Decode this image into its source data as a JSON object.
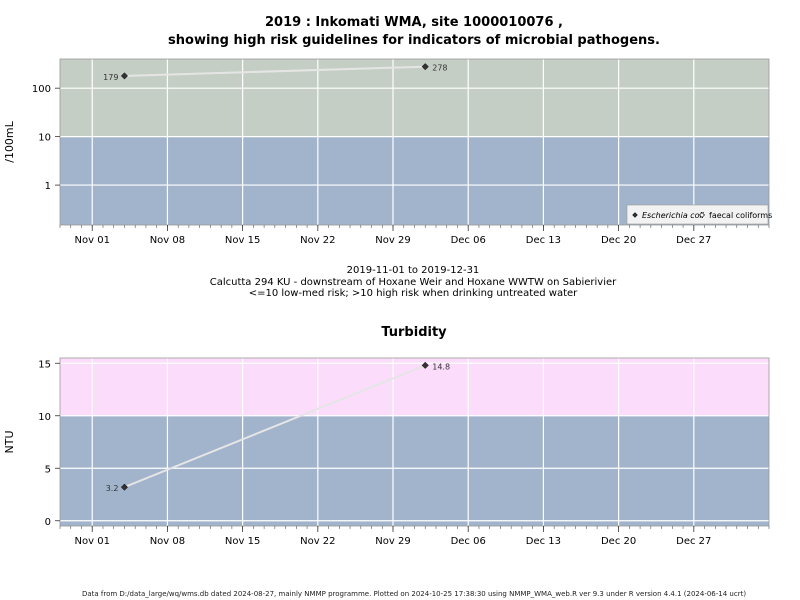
{
  "title_line1": "2019 : Inkomati WMA, site 1000010076 ,",
  "title_line2": "showing high risk guidelines for indicators of microbial pathogens.",
  "subtitle_lines": [
    "2019-11-01 to 2019-12-31",
    "Calcutta 294 KU - downstream of Hoxane Weir and Hoxane WWTW on Sabierivier",
    "<=10 low-med risk; >10 high risk when drinking untreated water"
  ],
  "footer": "Data from D:/data_large/wq/wms.db dated 2024-08-27, mainly NMMP programme. Plotted on 2024-10-25 17:38:30 using NMMP_WMA_web.R ver 9.3 under R version 4.4.1 (2024-06-14 ucrt)",
  "colors": {
    "panel_bg": "#a2b4cc",
    "high_risk_micro": "#c5cec5",
    "high_risk_turb": "#fbdcfb",
    "grid": "#ffffff",
    "line": "#e5e5e5",
    "point": "#333333"
  },
  "chart_data": [
    {
      "type": "line",
      "title": "",
      "xlabel": "",
      "ylabel": "/100mL",
      "yscale": "log",
      "xlim": [
        "2019-10-29",
        "2020-01-03"
      ],
      "ylim": [
        0.15,
        400
      ],
      "x_ticks": [
        "2019-11-01",
        "2019-11-08",
        "2019-11-15",
        "2019-11-22",
        "2019-11-29",
        "2019-12-06",
        "2019-12-13",
        "2019-12-20",
        "2019-12-27"
      ],
      "x_tick_labels": [
        "Nov 01",
        "Nov 08",
        "Nov 15",
        "Nov 22",
        "Nov 29",
        "Dec 06",
        "Dec 13",
        "Dec 20",
        "Dec 27"
      ],
      "y_ticks": [
        1,
        10,
        100
      ],
      "y_tick_labels": [
        "1",
        "10",
        "100"
      ],
      "threshold": 10,
      "grid": true,
      "legend_position": "bottom-right",
      "series": [
        {
          "name": "Escherichia coli",
          "marker": "filled-diamond",
          "x": [
            "2019-11-04",
            "2019-12-02"
          ],
          "values": [
            179,
            278
          ],
          "labels": [
            "179",
            "278"
          ]
        },
        {
          "name": "faecal coliforms",
          "marker": "open-diamond",
          "x": [],
          "values": [],
          "labels": []
        }
      ]
    },
    {
      "type": "line",
      "title": "Turbidity",
      "xlabel": "",
      "ylabel": "NTU",
      "yscale": "linear",
      "xlim": [
        "2019-10-29",
        "2020-01-03"
      ],
      "ylim": [
        -0.5,
        15.5
      ],
      "x_ticks": [
        "2019-11-01",
        "2019-11-08",
        "2019-11-15",
        "2019-11-22",
        "2019-11-29",
        "2019-12-06",
        "2019-12-13",
        "2019-12-20",
        "2019-12-27"
      ],
      "x_tick_labels": [
        "Nov 01",
        "Nov 08",
        "Nov 15",
        "Nov 22",
        "Nov 29",
        "Dec 06",
        "Dec 13",
        "Dec 20",
        "Dec 27"
      ],
      "y_ticks": [
        0,
        5,
        10,
        15
      ],
      "y_tick_labels": [
        "0",
        "5",
        "10",
        "15"
      ],
      "threshold": 10,
      "grid": true,
      "series": [
        {
          "marker": "filled-diamond",
          "x": [
            "2019-11-04",
            "2019-12-02"
          ],
          "values": [
            3.2,
            14.8
          ],
          "labels": [
            "3.2",
            "14.8"
          ]
        }
      ]
    }
  ]
}
